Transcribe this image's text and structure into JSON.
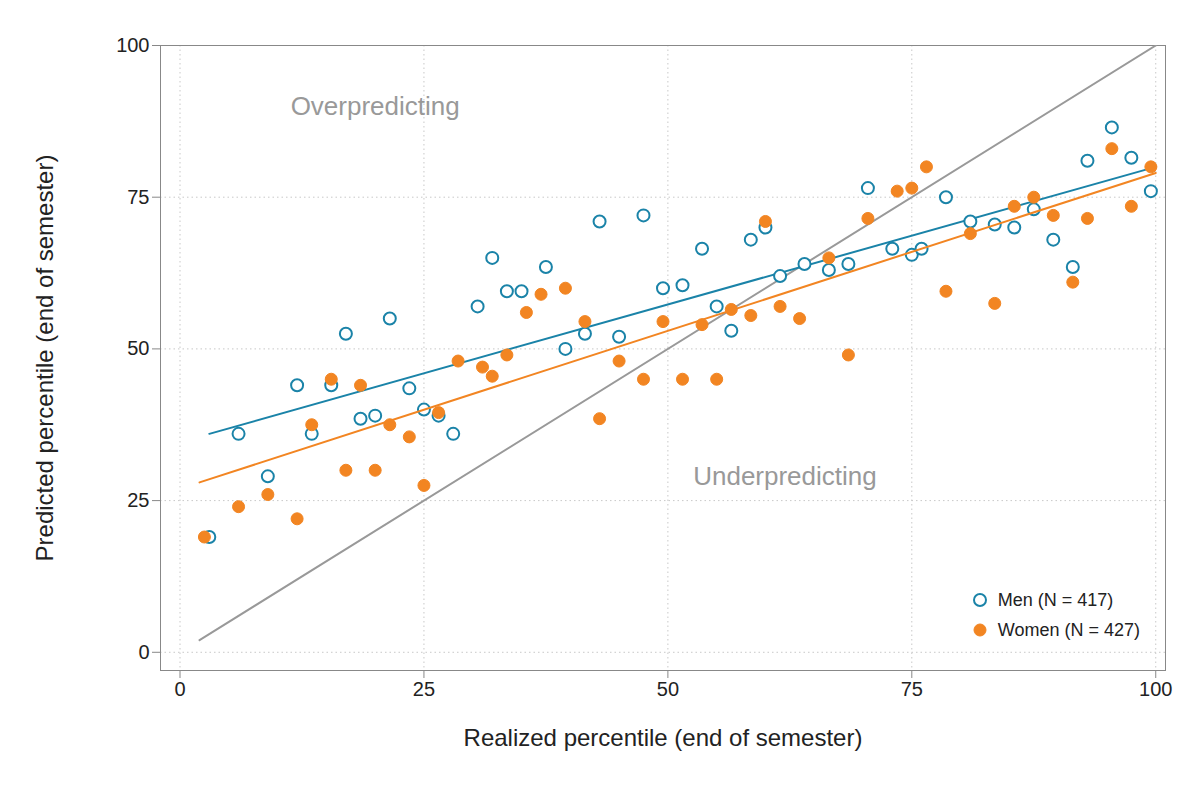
{
  "chart_data": {
    "type": "scatter",
    "xlabel": "Realized percentile (end of semester)",
    "ylabel": "Predicted percentile (end of semester)",
    "xlim": [
      -2,
      101
    ],
    "ylim": [
      -3,
      100
    ],
    "xticks": [
      0,
      25,
      50,
      75,
      100
    ],
    "yticks": [
      0,
      25,
      50,
      75,
      100
    ],
    "grid": true,
    "legend": "bottom-right",
    "annotations": [
      {
        "text": "Overpredicting",
        "x": 20,
        "y": 90
      },
      {
        "text": "Underpredicting",
        "x": 62,
        "y": 29
      }
    ],
    "reference_line": {
      "x": [
        2,
        100
      ],
      "values": [
        2,
        100
      ],
      "color": "#999999"
    },
    "series": [
      {
        "name": "Men (N = 417)",
        "color": "#1a83a8",
        "marker": "circle-open",
        "x": [
          3,
          6,
          9,
          12,
          13.5,
          15.5,
          17,
          18.5,
          20,
          21.5,
          23.5,
          25,
          26.5,
          28,
          30.5,
          32,
          33.5,
          35,
          37.5,
          39.5,
          41.5,
          43,
          45,
          47.5,
          49.5,
          51.5,
          53.5,
          55,
          56.5,
          58.5,
          60,
          61.5,
          64,
          66.5,
          68.5,
          70.5,
          73,
          75,
          76,
          78.5,
          81,
          83.5,
          85.5,
          87.5,
          89.5,
          91.5,
          93,
          95.5,
          97.5,
          99.5
        ],
        "values": [
          19,
          36,
          29,
          44,
          36,
          44,
          52.5,
          38.5,
          39,
          55,
          43.5,
          40,
          39,
          36,
          57,
          65,
          59.5,
          59.5,
          63.5,
          50,
          52.5,
          71,
          52,
          72,
          60,
          60.5,
          66.5,
          57,
          53,
          68,
          70,
          62,
          64,
          63,
          64,
          76.5,
          66.5,
          65.5,
          66.5,
          75,
          71,
          70.5,
          70,
          73,
          68,
          63.5,
          81,
          86.5,
          81.5,
          76
        ],
        "fit_x": [
          3,
          100
        ],
        "fit_values": [
          36,
          80
        ]
      },
      {
        "name": "Women (N = 427)",
        "color": "#f28522",
        "marker": "circle",
        "x": [
          2.5,
          6,
          9,
          12,
          13.5,
          15.5,
          17,
          18.5,
          20,
          21.5,
          23.5,
          25,
          26.5,
          28.5,
          31,
          32,
          33.5,
          35.5,
          37,
          39.5,
          41.5,
          43,
          45,
          47.5,
          49.5,
          51.5,
          53.5,
          55,
          56.5,
          58.5,
          60,
          61.5,
          63.5,
          66.5,
          68.5,
          70.5,
          73.5,
          75,
          76.5,
          78.5,
          81,
          83.5,
          85.5,
          87.5,
          89.5,
          91.5,
          93,
          95.5,
          97.5,
          99.5
        ],
        "values": [
          19,
          24,
          26,
          22,
          37.5,
          45,
          30,
          44,
          30,
          37.5,
          35.5,
          27.5,
          39.5,
          48,
          47,
          45.5,
          49,
          56,
          59,
          60,
          54.5,
          38.5,
          48,
          45,
          54.5,
          45,
          54,
          45,
          56.5,
          55.5,
          71,
          57,
          55,
          65,
          49,
          71.5,
          76,
          76.5,
          80,
          59.5,
          69,
          57.5,
          73.5,
          75,
          72,
          61,
          71.5,
          83,
          73.5,
          80
        ],
        "fit_x": [
          2,
          100
        ],
        "fit_values": [
          28,
          79
        ]
      }
    ]
  }
}
